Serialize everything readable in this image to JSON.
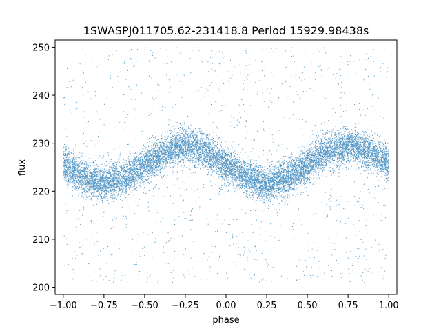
{
  "chart_data": {
    "type": "scatter",
    "title": "1SWASPJ011705.62-231418.8 Period 15929.98438s",
    "xlabel": "phase",
    "ylabel": "flux",
    "xlim": [
      -1.05,
      1.05
    ],
    "ylim": [
      198.5,
      251.5
    ],
    "x_ticks": [
      -1.0,
      -0.75,
      -0.5,
      -0.25,
      0.0,
      0.25,
      0.5,
      0.75,
      1.0
    ],
    "x_tick_labels": [
      "−1.00",
      "−0.75",
      "−0.50",
      "−0.25",
      "0.00",
      "0.25",
      "0.50",
      "0.75",
      "1.00"
    ],
    "y_ticks": [
      200,
      210,
      220,
      230,
      240,
      250
    ],
    "y_tick_labels": [
      "200",
      "210",
      "220",
      "230",
      "240",
      "250"
    ],
    "grid": false,
    "legend": "none",
    "marker_color": "#1f77b4",
    "series": [
      {
        "x": [
          -1.0,
          -0.875,
          -0.75,
          -0.625,
          -0.5,
          -0.375,
          -0.25,
          -0.125,
          0.0,
          0.125,
          0.25,
          0.375,
          0.5,
          0.625,
          0.75,
          0.875,
          1.0
        ],
        "y": [
          225.6,
          222.8,
          221.6,
          222.8,
          225.6,
          228.4,
          229.6,
          228.4,
          225.6,
          222.8,
          221.6,
          222.8,
          225.6,
          228.4,
          229.6,
          228.4,
          225.6
        ],
        "y_spread": 3.5,
        "outlier_range": [
          201,
          250
        ],
        "approx_point_count": 100000
      }
    ]
  }
}
